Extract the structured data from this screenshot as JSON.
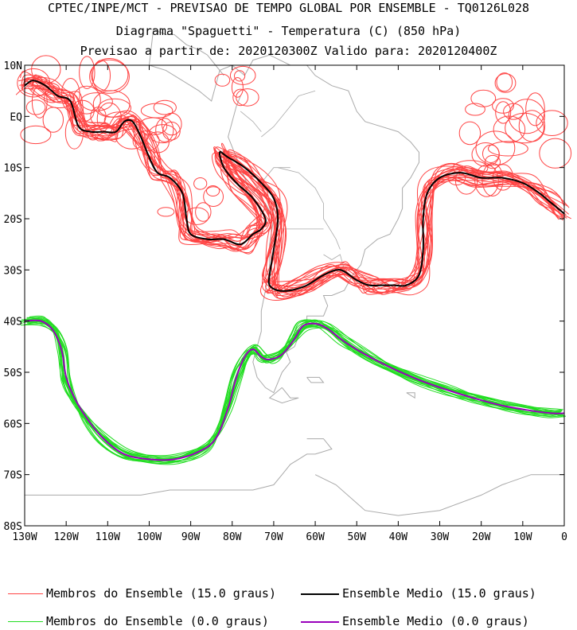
{
  "titles": {
    "line1": "CPTEC/INPE/MCT - PREVISAO DE TEMPO GLOBAL POR ENSEMBLE - TQ0126L028",
    "line2": "Diagrama \"Spaguetti\" - Temperatura (C) (850 hPa)",
    "line3": "Previsao a partir de: 2020120300Z  Valido para: 2020120400Z"
  },
  "axes": {
    "lat_labels": [
      "10N",
      "EQ",
      "10S",
      "20S",
      "30S",
      "40S",
      "50S",
      "60S",
      "70S",
      "80S"
    ],
    "lon_labels": [
      "130W",
      "120W",
      "110W",
      "100W",
      "90W",
      "80W",
      "70W",
      "60W",
      "50W",
      "40W",
      "30W",
      "20W",
      "10W",
      "0"
    ]
  },
  "legend": {
    "members_15": "Membros do Ensemble (15.0 graus)",
    "mean_15": "Ensemble Medio (15.0 graus)",
    "members_0": "Membros do Ensemble (0.0 graus)",
    "mean_0": "Ensemble Medio (0.0 graus)"
  },
  "colors": {
    "members_15": "#ff4444",
    "mean_15": "#000000",
    "members_0": "#22dd22",
    "mean_0": "#9900bb",
    "coast": "#aaaaaa"
  },
  "contours": {
    "mean_15": [
      [
        -130,
        6
      ],
      [
        -128,
        7
      ],
      [
        -125,
        6
      ],
      [
        -122,
        4
      ],
      [
        -119,
        3
      ],
      [
        -117,
        -2
      ],
      [
        -114,
        -3
      ],
      [
        -111,
        -3
      ],
      [
        -108,
        -3
      ],
      [
        -106,
        -1
      ],
      [
        -104,
        -1
      ],
      [
        -102,
        -4
      ],
      [
        -100,
        -8
      ],
      [
        -98,
        -11
      ],
      [
        -95,
        -12
      ],
      [
        -92,
        -15
      ],
      [
        -91,
        -20
      ],
      [
        -90,
        -23
      ],
      [
        -86,
        -24
      ],
      [
        -82,
        -24
      ],
      [
        -78,
        -25
      ],
      [
        -75,
        -23
      ],
      [
        -73,
        -22
      ],
      [
        -72,
        -20
      ],
      [
        -75,
        -16
      ],
      [
        -79,
        -13
      ],
      [
        -82,
        -10
      ],
      [
        -83,
        -7
      ],
      [
        -81,
        -8
      ],
      [
        -77,
        -10
      ],
      [
        -73,
        -13
      ],
      [
        -70,
        -16
      ],
      [
        -69,
        -20
      ],
      [
        -70,
        -26
      ],
      [
        -71,
        -31
      ],
      [
        -71,
        -33
      ],
      [
        -69,
        -34
      ],
      [
        -66,
        -34
      ],
      [
        -62,
        -33
      ],
      [
        -58,
        -31
      ],
      [
        -54,
        -30
      ],
      [
        -50,
        -32
      ],
      [
        -47,
        -33
      ],
      [
        -44,
        -33
      ],
      [
        -41,
        -33
      ],
      [
        -38,
        -33
      ],
      [
        -35,
        -31
      ],
      [
        -34,
        -26
      ],
      [
        -34,
        -20
      ],
      [
        -33,
        -15
      ],
      [
        -30,
        -12
      ],
      [
        -25,
        -11
      ],
      [
        -20,
        -12
      ],
      [
        -15,
        -12
      ],
      [
        -10,
        -13
      ],
      [
        -6,
        -15
      ],
      [
        -3,
        -17
      ],
      [
        0,
        -19
      ]
    ],
    "mean_0": [
      [
        -130,
        -40
      ],
      [
        -126,
        -40
      ],
      [
        -123,
        -42
      ],
      [
        -121,
        -46
      ],
      [
        -120,
        -51
      ],
      [
        -118,
        -55
      ],
      [
        -115,
        -59
      ],
      [
        -111,
        -63
      ],
      [
        -106,
        -66
      ],
      [
        -100,
        -67
      ],
      [
        -94,
        -67
      ],
      [
        -88,
        -65.5
      ],
      [
        -84,
        -63
      ],
      [
        -81,
        -57
      ],
      [
        -79,
        -51
      ],
      [
        -77,
        -47
      ],
      [
        -75,
        -45.5
      ],
      [
        -73,
        -47
      ],
      [
        -71,
        -47.5
      ],
      [
        -68,
        -46.5
      ],
      [
        -65,
        -43.5
      ],
      [
        -63,
        -41
      ],
      [
        -60,
        -40.5
      ],
      [
        -57,
        -41.5
      ],
      [
        -53,
        -44
      ],
      [
        -48,
        -46.5
      ],
      [
        -42,
        -49
      ],
      [
        -35,
        -51.5
      ],
      [
        -28,
        -53.5
      ],
      [
        -22,
        -55
      ],
      [
        -15,
        -56.5
      ],
      [
        -8,
        -57.5
      ],
      [
        -3,
        -58
      ],
      [
        0,
        -58
      ]
    ]
  }
}
